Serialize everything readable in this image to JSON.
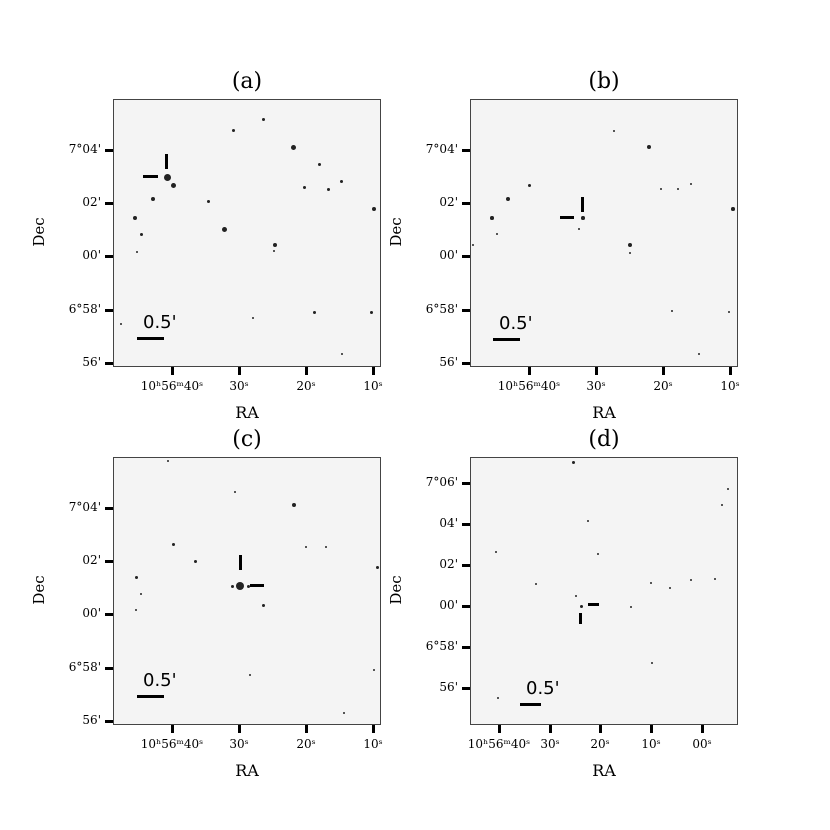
{
  "panels": [
    {
      "id": "a",
      "title": "(a)",
      "ylabel": "Dec",
      "xlabel": "RA",
      "yticks": [
        "7°04'",
        "02'",
        "00'",
        "6°58'",
        "56'"
      ],
      "xticks": [
        "10ʰ56ᵐ40ˢ",
        "30ˢ",
        "20ˢ",
        "10ˢ"
      ],
      "scale_label": "0.5'"
    },
    {
      "id": "b",
      "title": "(b)",
      "ylabel": "Dec",
      "xlabel": "RA",
      "yticks": [
        "7°04'",
        "02'",
        "00'",
        "6°58'",
        "56'"
      ],
      "xticks": [
        "10ʰ56ᵐ40ˢ",
        "30ˢ",
        "20ˢ",
        "10ˢ"
      ],
      "scale_label": "0.5'"
    },
    {
      "id": "c",
      "title": "(c)",
      "ylabel": "Dec",
      "xlabel": "RA",
      "yticks": [
        "7°04'",
        "02'",
        "00'",
        "6°58'",
        "56'"
      ],
      "xticks": [
        "10ʰ56ᵐ40ˢ",
        "30ˢ",
        "20ˢ",
        "10ˢ"
      ],
      "scale_label": "0.5'"
    },
    {
      "id": "d",
      "title": "(d)",
      "ylabel": "Dec",
      "xlabel": "RA",
      "yticks": [
        "7°06'",
        "04'",
        "02'",
        "00'",
        "6°58'",
        "56'"
      ],
      "xticks": [
        "10ʰ56ᵐ40ˢ",
        "30ˢ",
        "20ˢ",
        "10ˢ",
        "00ˢ"
      ],
      "scale_label": "0.5'"
    }
  ]
}
